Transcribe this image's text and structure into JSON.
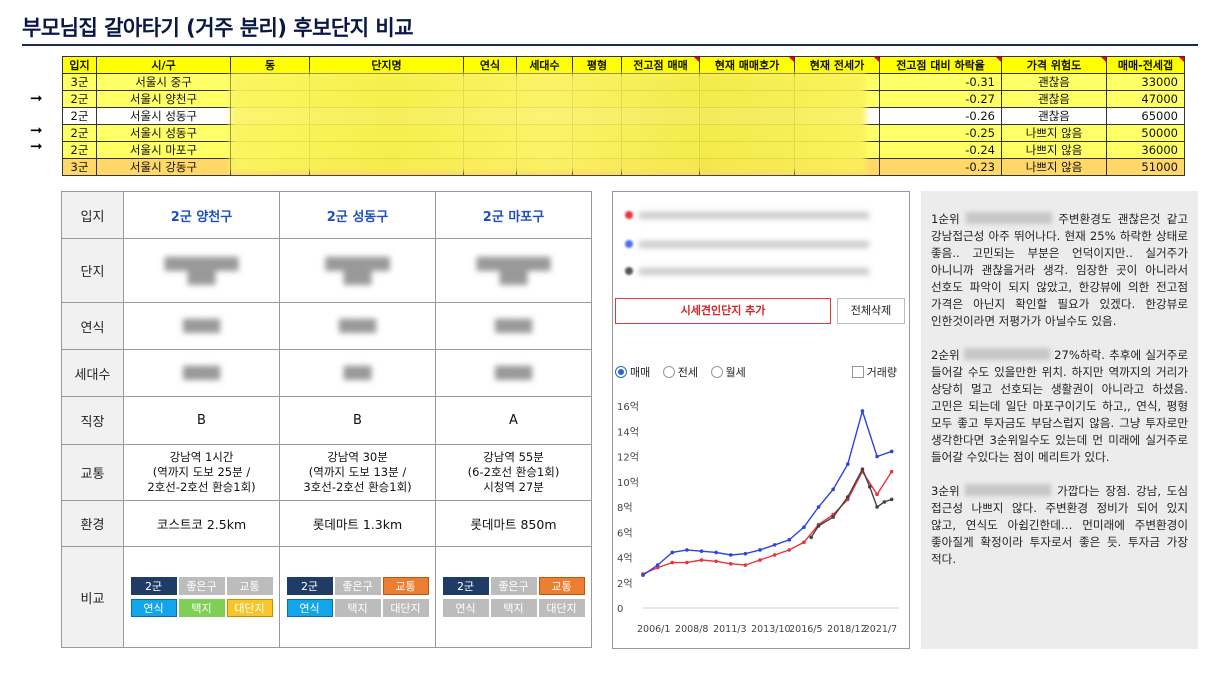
{
  "title": "부모님집 갈아타기 (거주 분리) 후보단지 비교",
  "top_table": {
    "headers": [
      "입지",
      "시/구",
      "동",
      "단지명",
      "연식",
      "세대수",
      "평형",
      "전고점 매매",
      "현재 매매호가",
      "현재 전세가",
      "전고점 대비 하락율",
      "가격 위험도",
      "매매-전세갭"
    ],
    "rows": [
      {
        "tier": "3군",
        "district": "서울시 중구",
        "drop": "-0.31",
        "risk": "괜찮음",
        "gap": "33000",
        "arrow": false
      },
      {
        "tier": "2군",
        "district": "서울시 양천구",
        "drop": "-0.27",
        "risk": "괜찮음",
        "gap": "47000",
        "arrow": true
      },
      {
        "tier": "2군",
        "district": "서울시 성동구",
        "drop": "-0.26",
        "risk": "괜찮음",
        "gap": "65000",
        "arrow": false
      },
      {
        "tier": "2군",
        "district": "서울시 성동구",
        "drop": "-0.25",
        "risk": "나쁘지 않음",
        "gap": "50000",
        "arrow": true
      },
      {
        "tier": "2군",
        "district": "서울시 마포구",
        "drop": "-0.24",
        "risk": "나쁘지 않음",
        "gap": "36000",
        "arrow": true
      },
      {
        "tier": "3군",
        "district": "서울시 강동구",
        "drop": "-0.23",
        "risk": "나쁘지 않음",
        "gap": "51000",
        "arrow": false
      }
    ],
    "arrow_glyph": "➞"
  },
  "compare": {
    "labels": {
      "location": "입지",
      "complex": "단지",
      "year": "연식",
      "households": "세대수",
      "job": "직장",
      "transport": "교통",
      "environment": "환경",
      "compare": "비교"
    },
    "columns": [
      {
        "header": "2군 양천구",
        "job": "B",
        "transport_l1": "강남역 1시간",
        "transport_l2": "(역까지 도보 25분 /",
        "transport_l3": "2호선-2호선 환승1회)",
        "environment": "코스트코 2.5km",
        "tags": [
          "2군",
          "좋은구",
          "교통",
          "연식",
          "택지",
          "대단지"
        ]
      },
      {
        "header": "2군 성동구",
        "job": "B",
        "transport_l1": "강남역 30분",
        "transport_l2": "(역까지 도보 13분 /",
        "transport_l3": "3호선-2호선 환승1회)",
        "environment": "롯데마트 1.3km",
        "tags": [
          "2군",
          "좋은구",
          "교통",
          "연식",
          "택지",
          "대단지"
        ]
      },
      {
        "header": "2군 마포구",
        "job": "A",
        "transport_l1": "강남역 55분",
        "transport_l2": "(6-2호선 환승1회)",
        "transport_l3": "시청역 27분",
        "environment": "롯데마트 850m",
        "tags": [
          "2군",
          "좋은구",
          "교통",
          "연식",
          "택지",
          "대단지"
        ]
      }
    ]
  },
  "chart_panel": {
    "add_button": "시세견인단지 추가",
    "delete_button": "전체삭제",
    "radio_sale": "매매",
    "radio_jeonse": "전세",
    "radio_monthly": "월세",
    "checkbox_volume": "거래량",
    "colors": {
      "red": "#e8343a",
      "blue": "#2b45e0",
      "black": "#444444"
    }
  },
  "chart_data": {
    "type": "line",
    "y_ticks": [
      "16억",
      "14억",
      "12억",
      "10억",
      "8억",
      "6억",
      "4억",
      "2억",
      "0"
    ],
    "x_ticks": [
      "2006/1",
      "2008/8",
      "2011/3",
      "2013/10",
      "2016/5",
      "2018/12",
      "2021/7"
    ],
    "ylim": [
      0,
      16
    ],
    "unit": "억",
    "grid": false,
    "series": [
      {
        "color": "red",
        "x": [
          2006,
          2007,
          2008,
          2009,
          2010,
          2011,
          2012,
          2013,
          2014,
          2015,
          2016,
          2017,
          2018,
          2019,
          2020,
          2021,
          2022,
          2023
        ],
        "values": [
          2.7,
          3.2,
          3.6,
          3.6,
          3.8,
          3.7,
          3.5,
          3.4,
          3.8,
          4.2,
          4.6,
          5.2,
          6.6,
          7.4,
          8.6,
          10.8,
          9.0,
          10.8
        ]
      },
      {
        "color": "blue",
        "x": [
          2006,
          2007,
          2008,
          2009,
          2010,
          2011,
          2012,
          2013,
          2014,
          2015,
          2016,
          2017,
          2018,
          2019,
          2020,
          2021,
          2022,
          2023
        ],
        "values": [
          2.6,
          3.4,
          4.4,
          4.6,
          4.5,
          4.4,
          4.2,
          4.3,
          4.6,
          5.0,
          5.4,
          6.4,
          8.0,
          9.4,
          11.4,
          15.6,
          12.0,
          12.4
        ]
      },
      {
        "color": "black",
        "x": [
          2017.5,
          2018,
          2019,
          2020,
          2021,
          2021.5,
          2022,
          2022.5,
          2023
        ],
        "values": [
          5.6,
          6.5,
          7.2,
          8.8,
          11.0,
          9.6,
          8.0,
          8.4,
          8.6
        ]
      }
    ]
  },
  "notes": {
    "p1_a": "1순위",
    "p1_b": "주변환경도 괜찮은것 같고 강남접근성 아주 뛰어나다. 현재 25% 하락한 상태로 좋음.. 고민되는 부분은 언덕이지만.. 실거주가 아니니까 괜찮을거라 생각. 임장한 곳이 아니라서 선호도 파악이 되지 않았고, 한강뷰에 의한 전고점 가격은 아닌지 확인할 필요가 있겠다. 한강뷰로 인한것이라면 저평가가 아닐수도 있음.",
    "p2_a": "2순위",
    "p2_b": "27%하락. 추후에 실거주로 들어갈 수도 있을만한 위치. 하지만 역까지의 거리가 상당히 멀고 선호되는 생활권이 아니라고 하셨음. 고민은 되는데 일단 마포구이기도 하고,, 연식, 평형 모두 좋고 투자금도 부담스럽지 않음. 그냥 투자로만 생각한다면 3순위일수도 있는데 먼 미래에 실거주로 들어갈 수있다는 점이 메리트가 있다.",
    "p3_a": "3순위",
    "p3_b": "가깝다는 장점. 강남, 도심 접근성 나쁘지 않다. 주변환경 정비가 되어 있지 않고, 연식도 아쉽긴한데… 먼미래에 주변환경이 좋아질게 확정이라 투자로서 좋은 듯. 투자금 가장 적다."
  }
}
